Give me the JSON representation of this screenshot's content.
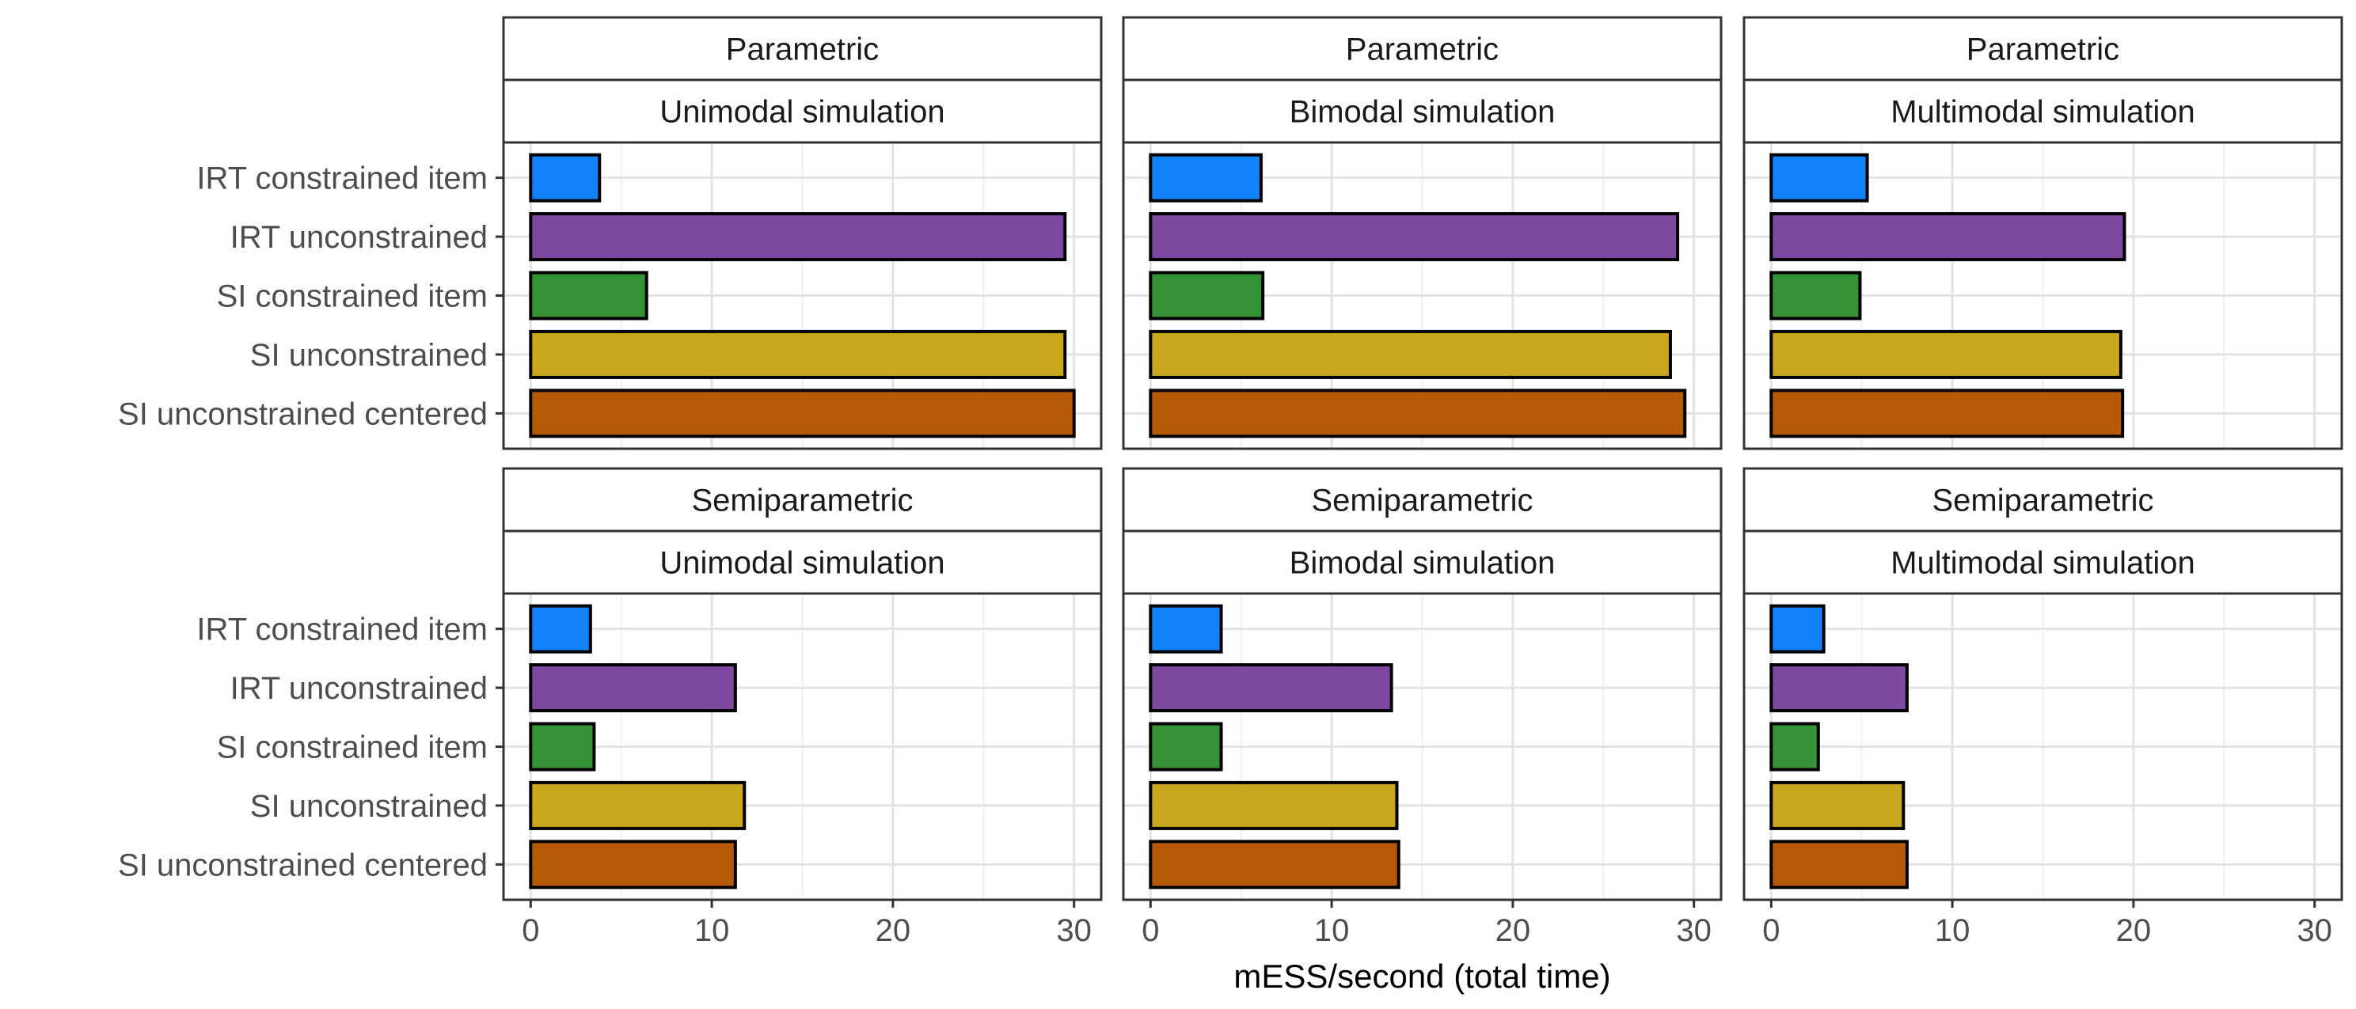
{
  "chart_data": {
    "type": "bar",
    "orientation": "horizontal",
    "xlabel": "mESS/second (total time)",
    "ylabel": "",
    "xlim": [
      -1.5,
      31.5
    ],
    "xticks": [
      0,
      10,
      20,
      30
    ],
    "grid": true,
    "categories": [
      "IRT constrained item",
      "IRT unconstrained",
      "SI constrained item",
      "SI unconstrained",
      "SI unconstrained centered"
    ],
    "colors": [
      "#1482fa",
      "#7e48a0",
      "#369236",
      "#c9a71c",
      "#b65a08"
    ],
    "row_strips": [
      "Parametric",
      "Semiparametric"
    ],
    "column_strips": [
      "Unimodal simulation",
      "Bimodal simulation",
      "Multimodal simulation"
    ],
    "panels": [
      {
        "model": "Parametric",
        "simulation": "Unimodal simulation",
        "values": [
          3.8,
          29.5,
          6.4,
          29.5,
          30.0
        ]
      },
      {
        "model": "Parametric",
        "simulation": "Bimodal simulation",
        "values": [
          6.1,
          29.1,
          6.2,
          28.7,
          29.5
        ]
      },
      {
        "model": "Parametric",
        "simulation": "Multimodal simulation",
        "values": [
          5.3,
          19.5,
          4.9,
          19.3,
          19.4
        ]
      },
      {
        "model": "Semiparametric",
        "simulation": "Unimodal simulation",
        "values": [
          3.3,
          11.3,
          3.5,
          11.8,
          11.3
        ]
      },
      {
        "model": "Semiparametric",
        "simulation": "Bimodal simulation",
        "values": [
          3.9,
          13.3,
          3.9,
          13.6,
          13.7
        ]
      },
      {
        "model": "Semiparametric",
        "simulation": "Multimodal simulation",
        "values": [
          2.9,
          7.5,
          2.6,
          7.3,
          7.5
        ]
      }
    ]
  }
}
